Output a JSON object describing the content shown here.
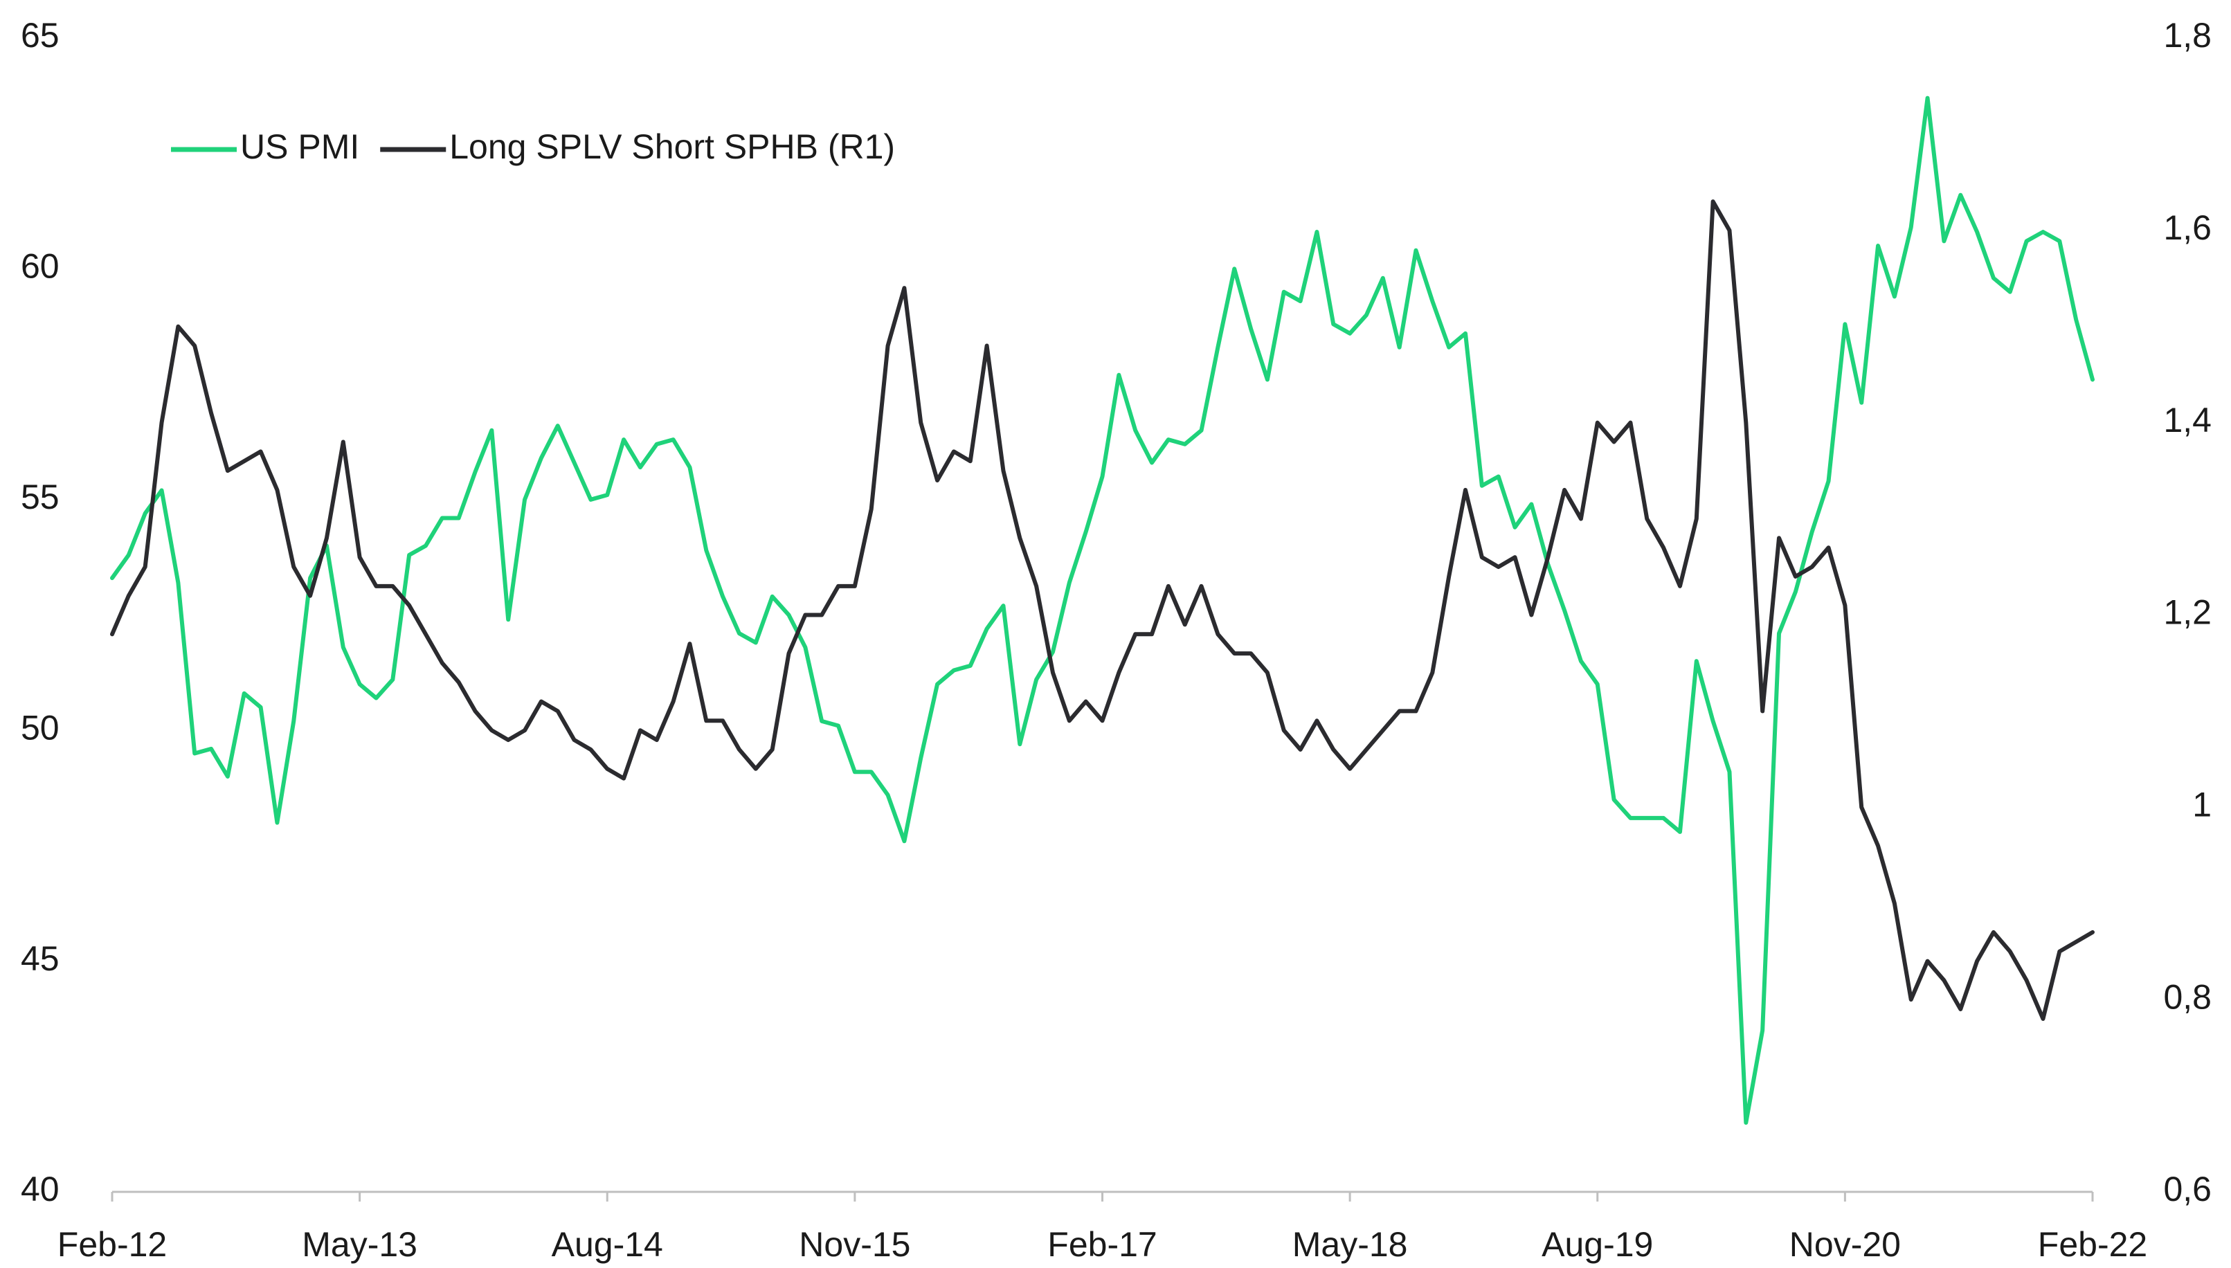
{
  "chart_data": {
    "type": "line",
    "x": [
      "Feb-12",
      "Mar-12",
      "Apr-12",
      "May-12",
      "Jun-12",
      "Jul-12",
      "Aug-12",
      "Sep-12",
      "Oct-12",
      "Nov-12",
      "Dec-12",
      "Jan-13",
      "Feb-13",
      "Mar-13",
      "Apr-13",
      "May-13",
      "Jun-13",
      "Jul-13",
      "Aug-13",
      "Sep-13",
      "Oct-13",
      "Nov-13",
      "Dec-13",
      "Jan-14",
      "Feb-14",
      "Mar-14",
      "Apr-14",
      "May-14",
      "Jun-14",
      "Jul-14",
      "Aug-14",
      "Sep-14",
      "Oct-14",
      "Nov-14",
      "Dec-14",
      "Jan-15",
      "Feb-15",
      "Mar-15",
      "Apr-15",
      "May-15",
      "Jun-15",
      "Jul-15",
      "Aug-15",
      "Sep-15",
      "Oct-15",
      "Nov-15",
      "Dec-15",
      "Jan-16",
      "Feb-16",
      "Mar-16",
      "Apr-16",
      "May-16",
      "Jun-16",
      "Jul-16",
      "Aug-16",
      "Sep-16",
      "Oct-16",
      "Nov-16",
      "Dec-16",
      "Jan-17",
      "Feb-17",
      "Mar-17",
      "Apr-17",
      "May-17",
      "Jun-17",
      "Jul-17",
      "Aug-17",
      "Sep-17",
      "Oct-17",
      "Nov-17",
      "Dec-17",
      "Jan-18",
      "Feb-18",
      "Mar-18",
      "Apr-18",
      "May-18",
      "Jun-18",
      "Jul-18",
      "Aug-18",
      "Sep-18",
      "Oct-18",
      "Nov-18",
      "Dec-18",
      "Jan-19",
      "Feb-19",
      "Mar-19",
      "Apr-19",
      "May-19",
      "Jun-19",
      "Jul-19",
      "Aug-19",
      "Sep-19",
      "Oct-19",
      "Nov-19",
      "Dec-19",
      "Jan-20",
      "Feb-20",
      "Mar-20",
      "Apr-20",
      "May-20",
      "Jun-20",
      "Jul-20",
      "Aug-20",
      "Sep-20",
      "Oct-20",
      "Nov-20",
      "Dec-20",
      "Jan-21",
      "Feb-21",
      "Mar-21",
      "Apr-21",
      "May-21",
      "Jun-21",
      "Jul-21",
      "Aug-21",
      "Sep-21",
      "Oct-21",
      "Nov-21",
      "Dec-21",
      "Jan-22",
      "Feb-22"
    ],
    "xticks": [
      "Feb-12",
      "May-13",
      "Aug-14",
      "Nov-15",
      "Feb-17",
      "May-18",
      "Aug-19",
      "Nov-20",
      "Feb-22"
    ],
    "series": [
      {
        "name": "US PMI",
        "color": "#1fd27a",
        "axis": "y",
        "values": [
          53.3,
          53.8,
          54.7,
          55.2,
          53.2,
          49.5,
          49.6,
          49.0,
          50.8,
          50.5,
          48.0,
          50.2,
          53.3,
          54.0,
          51.8,
          51.0,
          50.7,
          51.1,
          53.8,
          54.0,
          54.6,
          54.6,
          55.6,
          56.5,
          52.4,
          55.0,
          55.9,
          56.6,
          55.8,
          55.0,
          55.1,
          56.3,
          55.7,
          56.2,
          56.3,
          55.7,
          53.9,
          52.9,
          52.1,
          51.9,
          52.9,
          52.5,
          51.8,
          50.2,
          50.1,
          49.1,
          49.1,
          48.6,
          47.6,
          49.4,
          51.0,
          51.3,
          51.4,
          52.2,
          52.7,
          49.7,
          51.1,
          51.7,
          53.2,
          54.3,
          55.5,
          57.7,
          56.5,
          55.8,
          56.3,
          56.2,
          56.5,
          58.3,
          60.0,
          58.7,
          57.6,
          59.5,
          59.3,
          60.8,
          58.8,
          58.6,
          59.0,
          59.8,
          58.3,
          60.4,
          59.3,
          58.3,
          58.6,
          55.3,
          55.5,
          54.4,
          54.9,
          53.6,
          52.6,
          51.5,
          51.0,
          48.5,
          48.1,
          48.1,
          48.1,
          47.8,
          51.5,
          50.2,
          49.1,
          41.5,
          43.5,
          52.1,
          53.0,
          54.3,
          55.4,
          58.8,
          57.1,
          60.5,
          59.4,
          60.9,
          63.7,
          60.6,
          61.6,
          60.8,
          59.8,
          59.5,
          60.6,
          60.8,
          60.6,
          58.9,
          57.6
        ]
      },
      {
        "name": "Long SPLV Short SPHB (R1)",
        "color": "#2b2b2f",
        "axis": "y2",
        "values": [
          1.18,
          1.22,
          1.25,
          1.4,
          1.5,
          1.48,
          1.41,
          1.35,
          1.36,
          1.37,
          1.33,
          1.25,
          1.22,
          1.28,
          1.38,
          1.26,
          1.23,
          1.23,
          1.21,
          1.18,
          1.15,
          1.13,
          1.1,
          1.08,
          1.07,
          1.08,
          1.11,
          1.1,
          1.07,
          1.06,
          1.04,
          1.03,
          1.08,
          1.07,
          1.11,
          1.17,
          1.09,
          1.09,
          1.06,
          1.04,
          1.06,
          1.16,
          1.2,
          1.2,
          1.23,
          1.23,
          1.31,
          1.48,
          1.54,
          1.4,
          1.34,
          1.37,
          1.36,
          1.48,
          1.35,
          1.28,
          1.23,
          1.14,
          1.09,
          1.11,
          1.09,
          1.14,
          1.18,
          1.18,
          1.23,
          1.19,
          1.23,
          1.18,
          1.16,
          1.16,
          1.14,
          1.08,
          1.06,
          1.09,
          1.06,
          1.04,
          1.06,
          1.08,
          1.1,
          1.1,
          1.14,
          1.24,
          1.33,
          1.26,
          1.25,
          1.26,
          1.2,
          1.26,
          1.33,
          1.3,
          1.4,
          1.38,
          1.4,
          1.3,
          1.27,
          1.23,
          1.3,
          1.63,
          1.6,
          1.4,
          1.1,
          1.28,
          1.24,
          1.25,
          1.27,
          1.21,
          1.0,
          0.96,
          0.9,
          0.8,
          0.84,
          0.82,
          0.79,
          0.84,
          0.87,
          0.85,
          0.82,
          0.78,
          0.85,
          0.86,
          0.87
        ]
      }
    ],
    "ylim": [
      40,
      65
    ],
    "yticks": [
      40,
      45,
      50,
      55,
      60,
      65
    ],
    "y2lim": [
      0.6,
      1.8
    ],
    "y2ticks": [
      {
        "value": 0.6,
        "label": "0,6"
      },
      {
        "value": 0.8,
        "label": "0,8"
      },
      1,
      {
        "value": 1.2,
        "label": "1,2"
      },
      {
        "value": 1.4,
        "label": "1,4"
      },
      {
        "value": 1.6,
        "label": "1,6"
      },
      {
        "value": 1.8,
        "label": "1,8"
      }
    ],
    "grid": false,
    "legend": "top-left"
  }
}
